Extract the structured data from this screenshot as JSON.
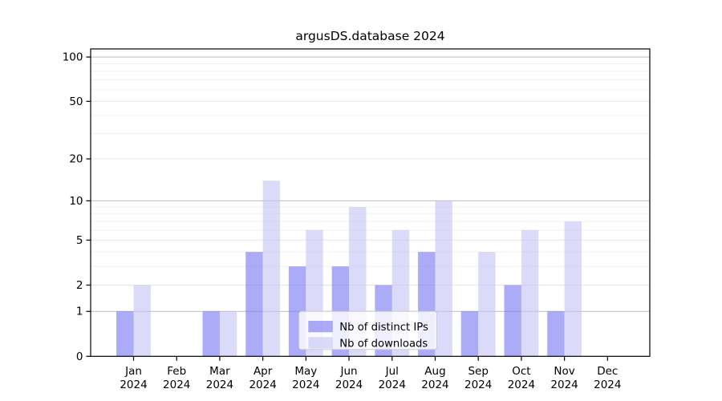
{
  "chart_data": {
    "type": "bar",
    "title": "argusDS.database 2024",
    "xlabel": "",
    "ylabel": "",
    "yscale": "log1p",
    "ylim": [
      0,
      112
    ],
    "grid": true,
    "months": [
      "Jan",
      "Feb",
      "Mar",
      "Apr",
      "May",
      "Jun",
      "Jul",
      "Aug",
      "Sep",
      "Oct",
      "Nov",
      "Dec"
    ],
    "year_label": "2024",
    "series": [
      {
        "name": "Nb of distinct IPs",
        "color": "#7373f2",
        "fill_opacity": 0.6,
        "values": [
          1,
          0,
          1,
          4,
          3,
          3,
          2,
          4,
          1,
          2,
          1,
          0
        ]
      },
      {
        "name": "Nb of downloads",
        "color": "#c3c3f5",
        "fill_opacity": 0.6,
        "values": [
          2,
          0,
          1,
          14,
          6,
          9,
          6,
          10,
          4,
          6,
          7,
          0
        ]
      }
    ],
    "yticks": [
      0,
      1,
      2,
      5,
      10,
      20,
      50,
      100
    ],
    "ytick_labels": [
      "0",
      "1",
      "2",
      "5",
      "10",
      "20",
      "50",
      "100"
    ],
    "strong_gridline_values": [
      1,
      10,
      100
    ],
    "light_gridline_values": [
      2,
      5,
      20,
      50
    ],
    "minor_gridline_values": [
      3,
      4,
      6,
      7,
      8,
      9,
      30,
      40,
      60,
      70,
      80,
      90,
      110
    ],
    "legend": {
      "labels": [
        "Nb of distinct IPs",
        "Nb of downloads"
      ],
      "position": "lower center"
    },
    "style": {
      "spine_color": "#000000",
      "strong_grid_color": "#bdbdbd",
      "light_grid_color": "#e6e6e6",
      "minor_grid_color": "#f0f0f0",
      "tick_color": "#000000",
      "text_color": "#000000",
      "legend_border_color": "#cccccc",
      "legend_bg_color": "rgba(255,255,255,0.8)",
      "background_color": "#ffffff"
    }
  }
}
